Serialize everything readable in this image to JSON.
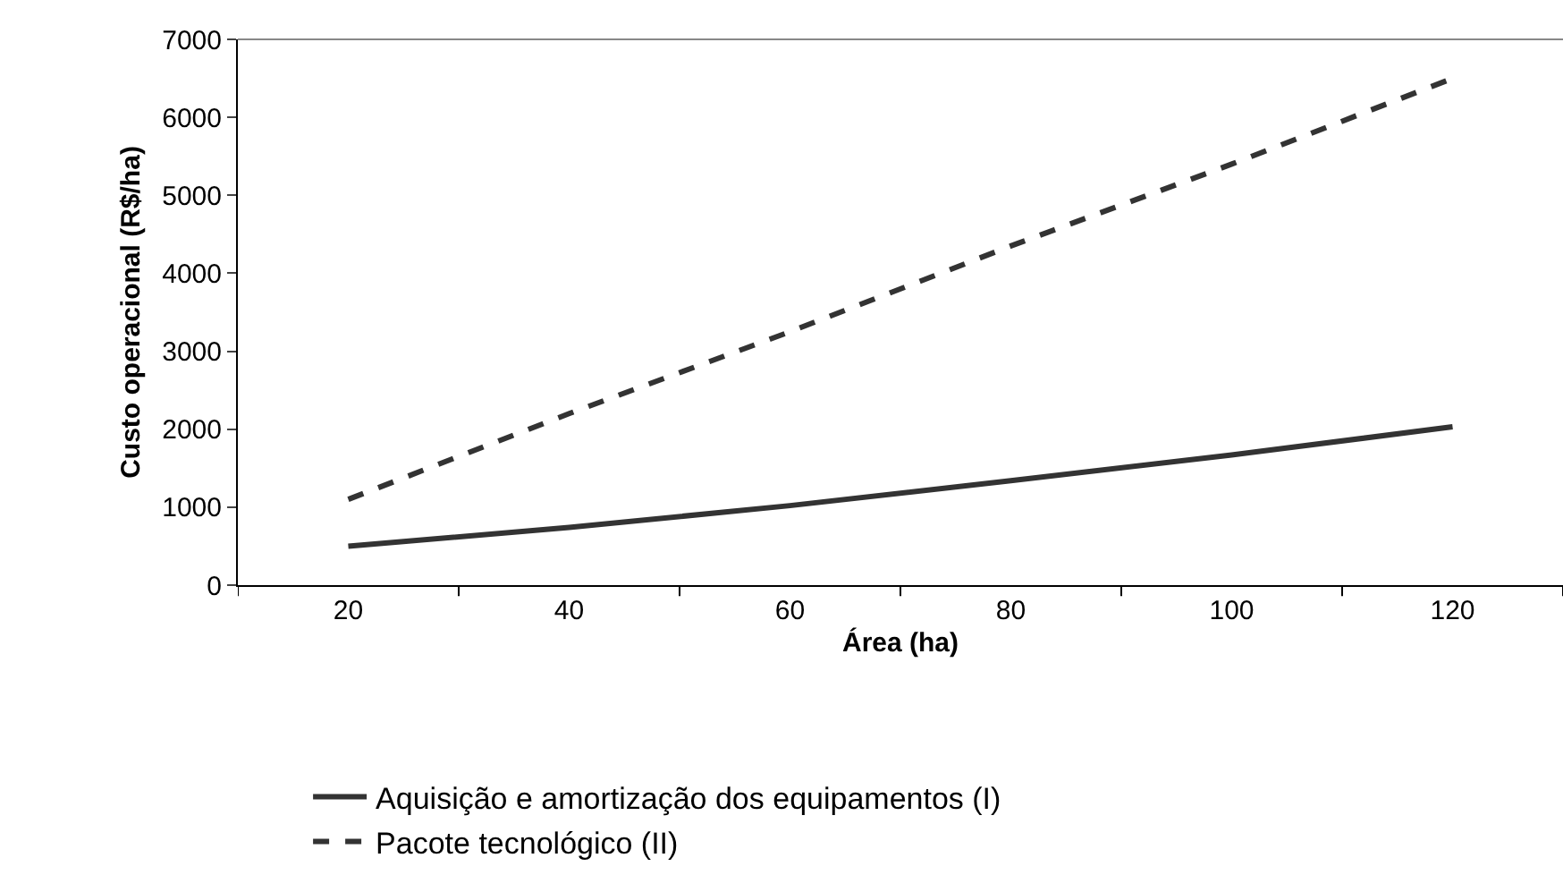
{
  "chart_data": {
    "type": "line",
    "xlabel": "Área (ha)",
    "ylabel": "Custo operacional (R$/ha)",
    "categories": [
      "20",
      "40",
      "60",
      "80",
      "100",
      "120"
    ],
    "series": [
      {
        "name": "Aquisição e amortização dos equipamentos (I)",
        "color": "#333333",
        "line_style": "solid",
        "values": [
          500,
          740,
          1020,
          1340,
          1670,
          2030
        ]
      },
      {
        "name": "Pacote tecnológico (II)",
        "color": "#333333",
        "line_style": "dashed",
        "values": [
          1100,
          2200,
          3250,
          4350,
          5400,
          6500
        ]
      }
    ],
    "ylim": [
      0,
      7000
    ],
    "yticks": [
      0,
      1000,
      2000,
      3000,
      4000,
      5000,
      6000,
      7000
    ],
    "grid": false,
    "legend": "bottom",
    "marker": "none"
  }
}
